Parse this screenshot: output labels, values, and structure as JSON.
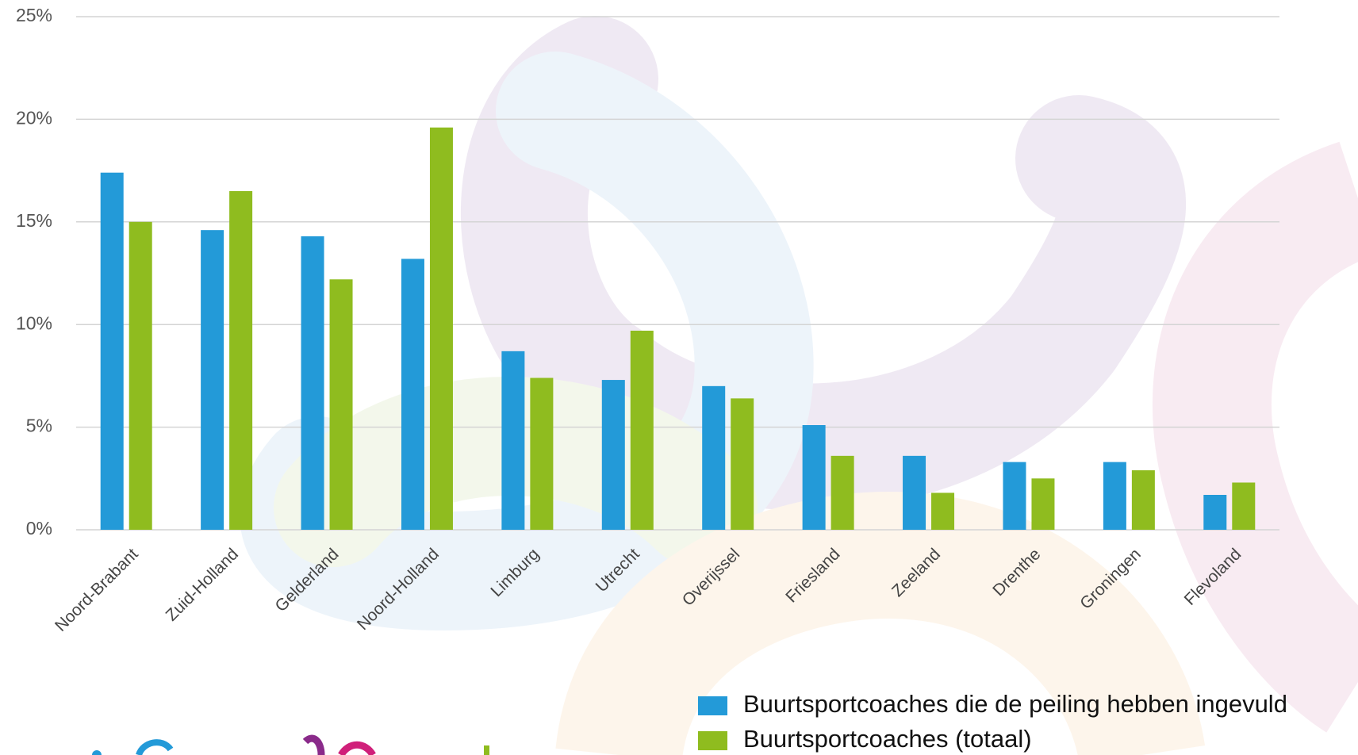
{
  "chart_data": {
    "type": "bar",
    "categories": [
      "Noord-Brabant",
      "Zuid-Holland",
      "Gelderland",
      "Noord-Holland",
      "Limburg",
      "Utrecht",
      "Overijssel",
      "Friesland",
      "Zeeland",
      "Drenthe",
      "Groningen",
      "Flevoland"
    ],
    "series": [
      {
        "name": "Buurtsportcoaches die de peiling hebben ingevuld",
        "color": "#239ad8",
        "values": [
          17.4,
          14.6,
          14.3,
          13.2,
          8.7,
          7.3,
          7.0,
          5.1,
          3.6,
          3.3,
          3.3,
          1.7
        ]
      },
      {
        "name": "Buurtsportcoaches (totaal)",
        "color": "#8fbc1f",
        "values": [
          15.0,
          16.5,
          12.2,
          19.6,
          7.4,
          9.7,
          6.4,
          3.6,
          1.8,
          2.5,
          2.9,
          2.3
        ]
      }
    ],
    "ylim": [
      0,
      25
    ],
    "yticks": [
      {
        "value": 0,
        "label": "0%"
      },
      {
        "value": 5,
        "label": "5%"
      },
      {
        "value": 10,
        "label": "10%"
      },
      {
        "value": 15,
        "label": "15%"
      },
      {
        "value": 20,
        "label": "20%"
      },
      {
        "value": 25,
        "label": "25%"
      }
    ],
    "grid": true,
    "legend": "bottom-right"
  }
}
